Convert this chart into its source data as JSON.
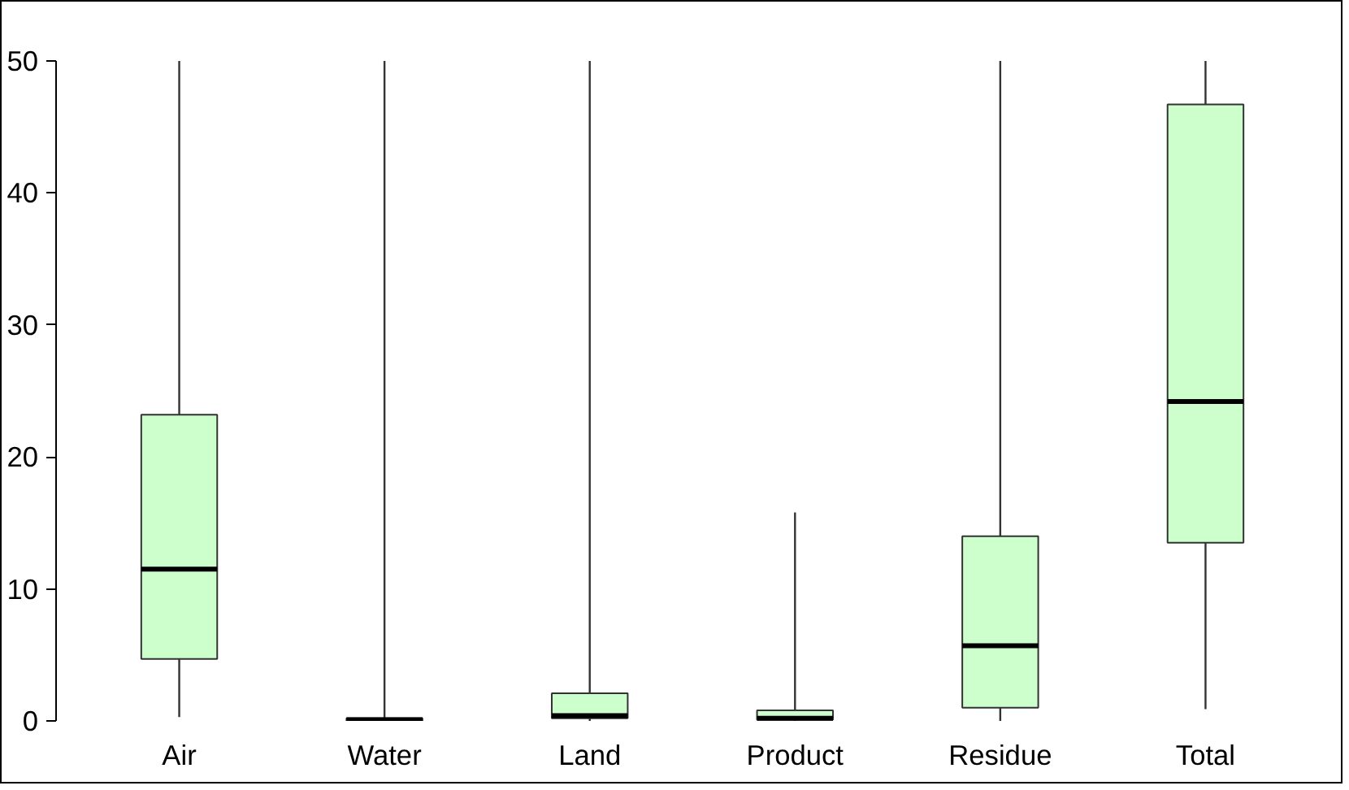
{
  "chart_data": {
    "type": "box",
    "categories": [
      "Air",
      "Water",
      "Land",
      "Product",
      "Residue",
      "Total"
    ],
    "boxes": [
      {
        "low": 0.3,
        "q1": 4.7,
        "median": 11.5,
        "q3": 23.2,
        "high": 50
      },
      {
        "low": 0,
        "q1": 0,
        "median": 0.1,
        "q3": 0.2,
        "high": 50
      },
      {
        "low": 0,
        "q1": 0.2,
        "median": 0.4,
        "q3": 2.1,
        "high": 50
      },
      {
        "low": 0,
        "q1": 0.1,
        "median": 0.2,
        "q3": 0.8,
        "high": 15.8
      },
      {
        "low": 0,
        "q1": 1.0,
        "median": 5.7,
        "q3": 14.0,
        "high": 50
      },
      {
        "low": 0.9,
        "q1": 13.5,
        "median": 24.2,
        "q3": 46.7,
        "high": 50
      }
    ],
    "color": "#ccffcc",
    "ylim": [
      0,
      50
    ],
    "yticks": [
      0,
      10,
      20,
      30,
      40,
      50
    ],
    "grid": false
  }
}
